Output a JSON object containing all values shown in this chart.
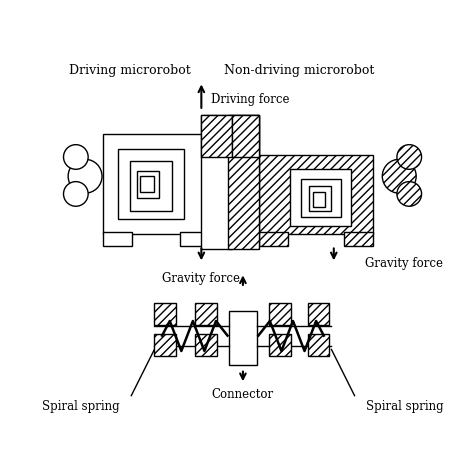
{
  "bg_color": "#ffffff",
  "top_label_left": "Driving microrobot",
  "top_label_right": "Non-driving microrobot",
  "driving_force_label": "Driving force",
  "gravity_force_label1": "Gravity force",
  "gravity_force_label2": "Gravity force",
  "spiral_spring_label_left": "Spiral spring",
  "spiral_spring_label_right": "Spiral spring",
  "connector_label": "Connector",
  "figsize": [
    4.74,
    4.74
  ],
  "dpi": 100
}
